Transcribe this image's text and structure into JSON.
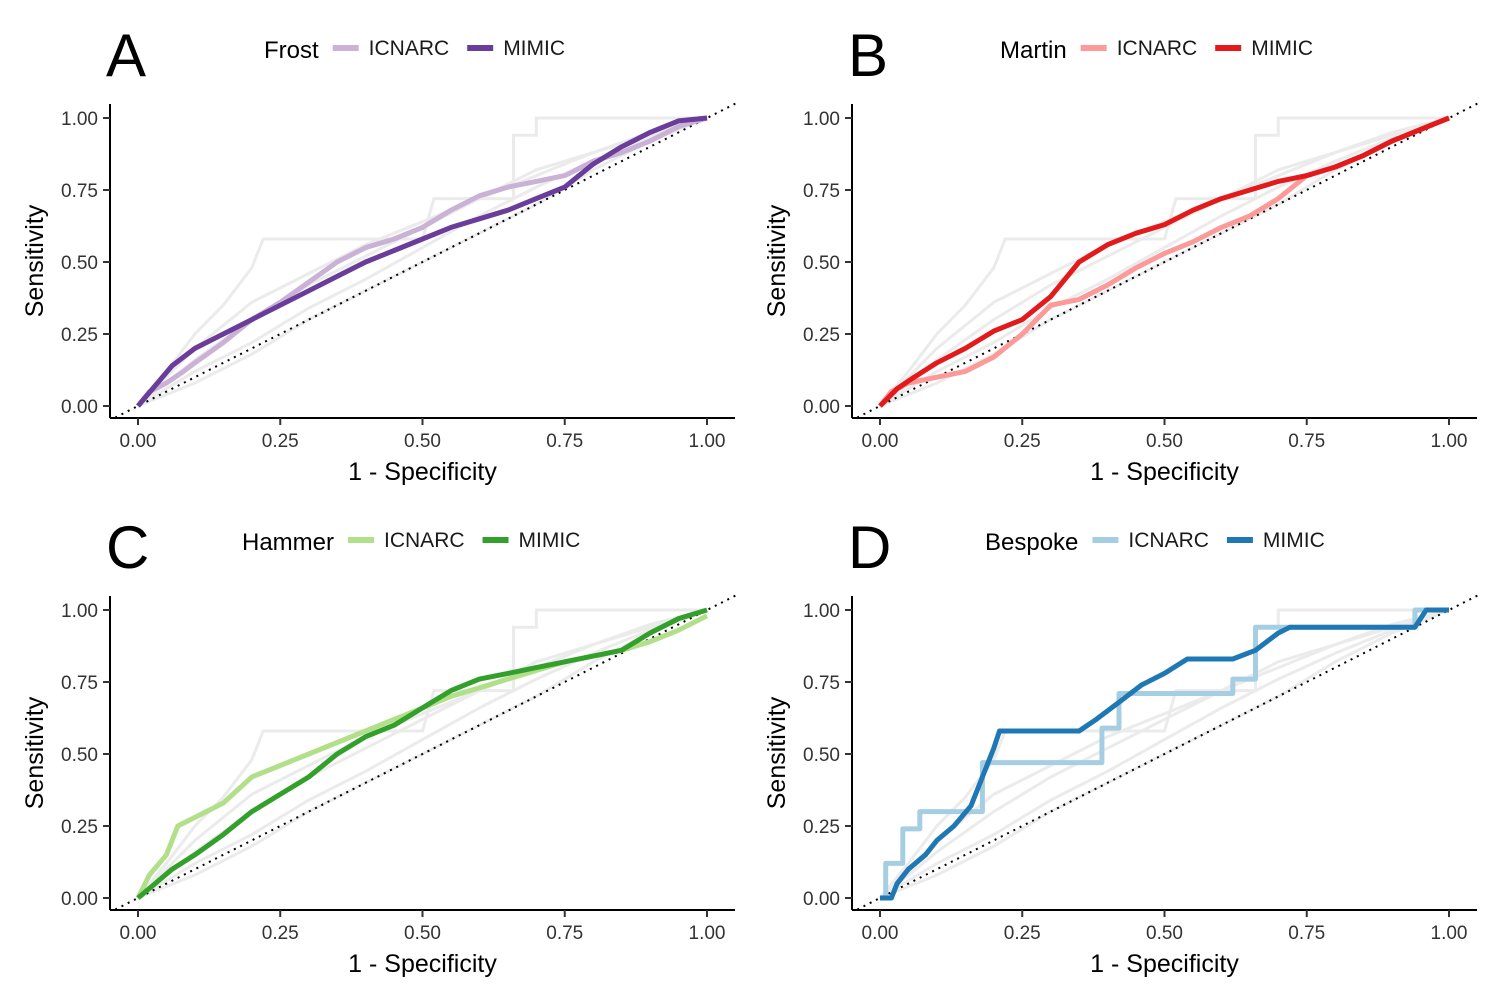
{
  "chart_data": [
    {
      "panel": "A",
      "type": "line",
      "legend_title": "Frost",
      "xlabel": "1 - Specificity",
      "ylabel": "Sensitivity",
      "xlim": [
        0,
        1
      ],
      "ylim": [
        0,
        1
      ],
      "x_ticks": [
        "0.00",
        "0.25",
        "0.50",
        "0.75",
        "1.00"
      ],
      "y_ticks": [
        "0.00",
        "0.25",
        "0.50",
        "0.75",
        "1.00"
      ],
      "legend_position": "top",
      "grid": false,
      "reference_line": "diagonal-dotted",
      "background_series_color": "#ebebeb",
      "series": [
        {
          "name": "ICNARC",
          "color": "#cab2d6",
          "x": [
            0,
            0.02,
            0.05,
            0.08,
            0.1,
            0.15,
            0.2,
            0.25,
            0.3,
            0.35,
            0.4,
            0.45,
            0.5,
            0.55,
            0.6,
            0.65,
            0.7,
            0.75,
            0.8,
            0.85,
            0.9,
            0.95,
            1.0
          ],
          "y": [
            0,
            0.05,
            0.08,
            0.12,
            0.15,
            0.22,
            0.3,
            0.36,
            0.43,
            0.5,
            0.55,
            0.58,
            0.62,
            0.68,
            0.73,
            0.76,
            0.78,
            0.8,
            0.85,
            0.88,
            0.92,
            0.97,
            1.0
          ]
        },
        {
          "name": "MIMIC",
          "color": "#6a3d9a",
          "x": [
            0,
            0.03,
            0.06,
            0.1,
            0.15,
            0.2,
            0.25,
            0.3,
            0.35,
            0.4,
            0.45,
            0.5,
            0.55,
            0.6,
            0.65,
            0.7,
            0.75,
            0.8,
            0.85,
            0.9,
            0.95,
            1.0
          ],
          "y": [
            0,
            0.07,
            0.14,
            0.2,
            0.25,
            0.3,
            0.35,
            0.4,
            0.45,
            0.5,
            0.54,
            0.58,
            0.62,
            0.65,
            0.68,
            0.72,
            0.76,
            0.84,
            0.9,
            0.95,
            0.99,
            1.0
          ]
        }
      ]
    },
    {
      "panel": "B",
      "type": "line",
      "legend_title": "Martin",
      "xlabel": "1 - Specificity",
      "ylabel": "Sensitivity",
      "xlim": [
        0,
        1
      ],
      "ylim": [
        0,
        1
      ],
      "x_ticks": [
        "0.00",
        "0.25",
        "0.50",
        "0.75",
        "1.00"
      ],
      "y_ticks": [
        "0.00",
        "0.25",
        "0.50",
        "0.75",
        "1.00"
      ],
      "legend_position": "top",
      "grid": false,
      "reference_line": "diagonal-dotted",
      "background_series_color": "#ebebeb",
      "series": [
        {
          "name": "ICNARC",
          "color": "#fb9a99",
          "x": [
            0,
            0.02,
            0.05,
            0.1,
            0.15,
            0.2,
            0.25,
            0.3,
            0.35,
            0.4,
            0.45,
            0.5,
            0.55,
            0.6,
            0.65,
            0.7,
            0.75,
            0.8,
            0.85,
            0.9,
            0.95,
            1.0
          ],
          "y": [
            0,
            0.05,
            0.08,
            0.1,
            0.12,
            0.17,
            0.25,
            0.35,
            0.37,
            0.42,
            0.48,
            0.53,
            0.57,
            0.62,
            0.66,
            0.72,
            0.8,
            0.83,
            0.87,
            0.92,
            0.96,
            1.0
          ]
        },
        {
          "name": "MIMIC",
          "color": "#e31a1c",
          "x": [
            0,
            0.03,
            0.06,
            0.1,
            0.15,
            0.2,
            0.25,
            0.3,
            0.35,
            0.4,
            0.45,
            0.5,
            0.55,
            0.6,
            0.65,
            0.7,
            0.75,
            0.8,
            0.85,
            0.9,
            0.95,
            1.0
          ],
          "y": [
            0,
            0.06,
            0.1,
            0.15,
            0.2,
            0.26,
            0.3,
            0.38,
            0.5,
            0.56,
            0.6,
            0.63,
            0.68,
            0.72,
            0.75,
            0.78,
            0.8,
            0.83,
            0.87,
            0.92,
            0.96,
            1.0
          ]
        }
      ]
    },
    {
      "panel": "C",
      "type": "line",
      "legend_title": "Hammer",
      "xlabel": "1 - Specificity",
      "ylabel": "Sensitivity",
      "xlim": [
        0,
        1
      ],
      "ylim": [
        0,
        1
      ],
      "x_ticks": [
        "0.00",
        "0.25",
        "0.50",
        "0.75",
        "1.00"
      ],
      "y_ticks": [
        "0.00",
        "0.25",
        "0.50",
        "0.75",
        "1.00"
      ],
      "legend_position": "top",
      "grid": false,
      "reference_line": "diagonal-dotted",
      "background_series_color": "#ebebeb",
      "series": [
        {
          "name": "ICNARC",
          "color": "#b2df8a",
          "x": [
            0,
            0.02,
            0.05,
            0.07,
            0.1,
            0.15,
            0.2,
            0.25,
            0.3,
            0.35,
            0.4,
            0.45,
            0.5,
            0.55,
            0.6,
            0.65,
            0.7,
            0.75,
            0.8,
            0.85,
            0.9,
            0.95,
            1.0
          ],
          "y": [
            0,
            0.08,
            0.15,
            0.25,
            0.28,
            0.33,
            0.42,
            0.46,
            0.5,
            0.54,
            0.58,
            0.62,
            0.66,
            0.7,
            0.73,
            0.76,
            0.79,
            0.82,
            0.84,
            0.86,
            0.89,
            0.93,
            0.98
          ]
        },
        {
          "name": "MIMIC",
          "color": "#33a02c",
          "x": [
            0,
            0.03,
            0.06,
            0.1,
            0.15,
            0.2,
            0.25,
            0.3,
            0.35,
            0.4,
            0.45,
            0.5,
            0.55,
            0.6,
            0.65,
            0.7,
            0.75,
            0.8,
            0.85,
            0.9,
            0.95,
            1.0
          ],
          "y": [
            0,
            0.05,
            0.1,
            0.15,
            0.22,
            0.3,
            0.36,
            0.42,
            0.5,
            0.56,
            0.6,
            0.66,
            0.72,
            0.76,
            0.78,
            0.8,
            0.82,
            0.84,
            0.86,
            0.92,
            0.97,
            1.0
          ]
        }
      ]
    },
    {
      "panel": "D",
      "type": "line",
      "legend_title": "Bespoke",
      "xlabel": "1 - Specificity",
      "ylabel": "Sensitivity",
      "xlim": [
        0,
        1
      ],
      "ylim": [
        0,
        1
      ],
      "x_ticks": [
        "0.00",
        "0.25",
        "0.50",
        "0.75",
        "1.00"
      ],
      "y_ticks": [
        "0.00",
        "0.25",
        "0.50",
        "0.75",
        "1.00"
      ],
      "legend_position": "top",
      "grid": false,
      "reference_line": "diagonal-dotted",
      "background_series_color": "#ebebeb",
      "series": [
        {
          "name": "ICNARC",
          "color": "#a6cee3",
          "x": [
            0,
            0.01,
            0.01,
            0.04,
            0.04,
            0.07,
            0.07,
            0.18,
            0.18,
            0.24,
            0.24,
            0.39,
            0.39,
            0.42,
            0.42,
            0.62,
            0.62,
            0.66,
            0.66,
            0.94,
            0.94,
            1.0
          ],
          "y": [
            0,
            0,
            0.12,
            0.12,
            0.24,
            0.24,
            0.3,
            0.3,
            0.47,
            0.47,
            0.47,
            0.47,
            0.59,
            0.59,
            0.71,
            0.71,
            0.76,
            0.76,
            0.94,
            0.94,
            1.0,
            1.0
          ]
        },
        {
          "name": "MIMIC",
          "color": "#1f78b4",
          "x": [
            0,
            0.02,
            0.03,
            0.05,
            0.08,
            0.1,
            0.13,
            0.16,
            0.18,
            0.2,
            0.21,
            0.35,
            0.38,
            0.42,
            0.46,
            0.5,
            0.54,
            0.62,
            0.66,
            0.7,
            0.72,
            0.94,
            0.96,
            1.0
          ],
          "y": [
            0,
            0,
            0.05,
            0.1,
            0.15,
            0.2,
            0.25,
            0.32,
            0.42,
            0.52,
            0.58,
            0.58,
            0.62,
            0.68,
            0.74,
            0.78,
            0.83,
            0.83,
            0.86,
            0.92,
            0.94,
            0.94,
            1.0,
            1.0
          ]
        }
      ]
    }
  ]
}
